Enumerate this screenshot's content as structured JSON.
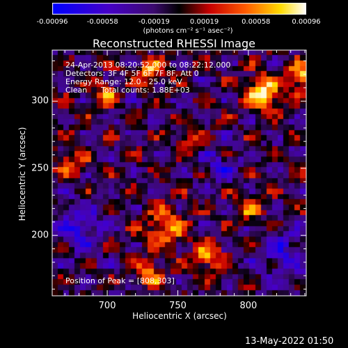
{
  "chart_data": {
    "type": "heatmap",
    "title": "Reconstructed RHESSI Image",
    "xlabel": "Heliocentric X (arcsec)",
    "ylabel": "Heliocentric Y (arcsec)",
    "xlim": [
      661,
      841
    ],
    "ylim": [
      155,
      338
    ],
    "x_ticks": [
      "700",
      "750",
      "800"
    ],
    "x_tick_values": [
      700,
      750,
      800
    ],
    "y_ticks": [
      "200",
      "250",
      "300"
    ],
    "y_tick_values": [
      200,
      250,
      300
    ],
    "colorbar": {
      "range": [
        -0.00096,
        0.00096
      ],
      "tick_labels": [
        "-0.00096",
        "-0.00058",
        "-0.00019",
        "0.00019",
        "0.00058",
        "0.00096"
      ],
      "tick_values": [
        -0.00096,
        -0.00058,
        -0.00019,
        0.00019,
        0.00058,
        0.00096
      ],
      "unit": "(photons cm⁻² s⁻¹ asec⁻²)"
    },
    "annotations": [
      "24-Apr-2013 08:20:52.000 to 08:22:12.000",
      "Detectors: 3F 4F 5F 6F 7F 8F, Att 0",
      "Energy Range: 12.0 - 25.0 keV",
      "Clean",
      "Total counts: 1.88E+03",
      "Position of Peak = [808,303]"
    ],
    "peak": [
      808,
      303
    ],
    "intensity_sources": [
      {
        "x": 810,
        "y": 305,
        "amp": 1.0,
        "sigma": 9
      },
      {
        "x": 838,
        "y": 318,
        "amp": 0.85,
        "sigma": 7
      },
      {
        "x": 730,
        "y": 322,
        "amp": 0.75,
        "sigma": 7
      },
      {
        "x": 700,
        "y": 305,
        "amp": 0.6,
        "sigma": 6
      },
      {
        "x": 742,
        "y": 205,
        "amp": 0.75,
        "sigma": 10
      },
      {
        "x": 772,
        "y": 183,
        "amp": 0.8,
        "sigma": 7
      },
      {
        "x": 730,
        "y": 170,
        "amp": 0.7,
        "sigma": 7
      },
      {
        "x": 675,
        "y": 255,
        "amp": 0.55,
        "sigma": 8
      },
      {
        "x": 800,
        "y": 220,
        "amp": 0.5,
        "sigma": 8
      },
      {
        "x": 760,
        "y": 268,
        "amp": 0.45,
        "sigma": 7
      },
      {
        "x": 825,
        "y": 185,
        "amp": -0.5,
        "sigma": 12
      },
      {
        "x": 680,
        "y": 205,
        "amp": -0.55,
        "sigma": 12
      },
      {
        "x": 780,
        "y": 250,
        "amp": -0.4,
        "sigma": 10
      }
    ]
  },
  "timestamp": "13-May-2022 01:50"
}
